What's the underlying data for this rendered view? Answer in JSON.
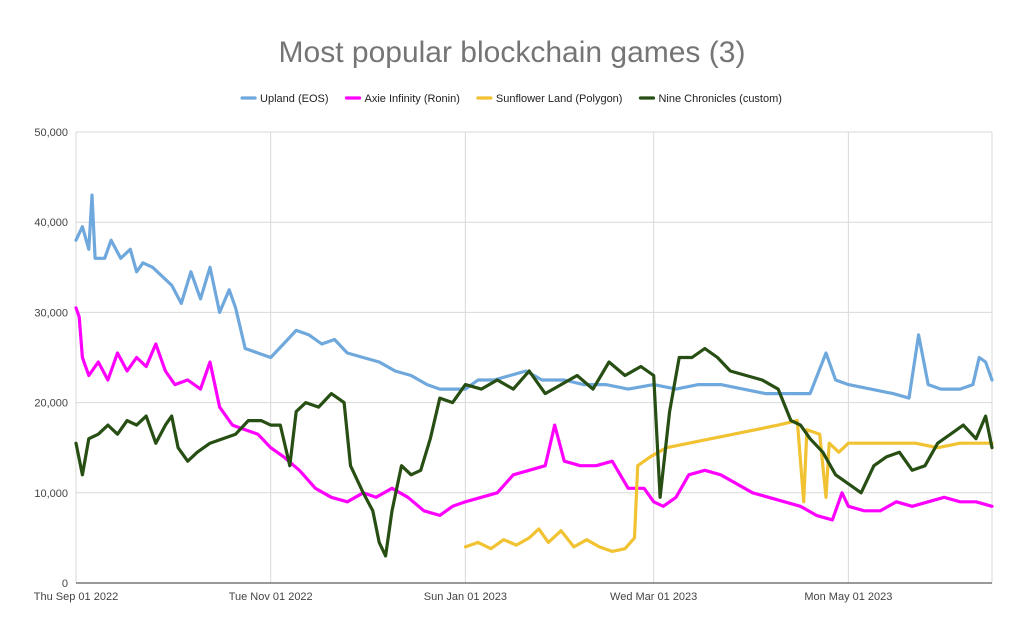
{
  "chart_data": {
    "type": "line",
    "title": "Most popular blockchain games (3)",
    "xlabel": "",
    "ylabel": "",
    "x_start": "2022-09-01",
    "x_end": "2023-06-15",
    "x_tick_labels": [
      {
        "date": "2022-09-01",
        "label": "Thu Sep 01 2022"
      },
      {
        "date": "2022-11-01",
        "label": "Tue Nov 01 2022"
      },
      {
        "date": "2023-01-01",
        "label": "Sun Jan 01 2023"
      },
      {
        "date": "2023-03-01",
        "label": "Wed Mar 01 2023"
      },
      {
        "date": "2023-05-01",
        "label": "Mon May 01 2023"
      }
    ],
    "y_ticks": [
      0,
      10000,
      20000,
      30000,
      40000,
      50000
    ],
    "y_tick_labels": [
      "0",
      "10,000",
      "20,000",
      "30,000",
      "40,000",
      "50,000"
    ],
    "ylim": [
      0,
      50000
    ],
    "grid": "vertical-and-horizontal",
    "legend_position": "top",
    "series": [
      {
        "name": "Upland (EOS)",
        "color": "#6fa8dc",
        "points": [
          [
            "2022-09-01",
            38000
          ],
          [
            "2022-09-03",
            39500
          ],
          [
            "2022-09-05",
            37000
          ],
          [
            "2022-09-06",
            43000
          ],
          [
            "2022-09-07",
            36000
          ],
          [
            "2022-09-10",
            36000
          ],
          [
            "2022-09-12",
            38000
          ],
          [
            "2022-09-15",
            36000
          ],
          [
            "2022-09-18",
            37000
          ],
          [
            "2022-09-20",
            34500
          ],
          [
            "2022-09-22",
            35500
          ],
          [
            "2022-09-25",
            35000
          ],
          [
            "2022-09-28",
            34000
          ],
          [
            "2022-10-01",
            33000
          ],
          [
            "2022-10-04",
            31000
          ],
          [
            "2022-10-07",
            34500
          ],
          [
            "2022-10-10",
            31500
          ],
          [
            "2022-10-13",
            35000
          ],
          [
            "2022-10-16",
            30000
          ],
          [
            "2022-10-19",
            32500
          ],
          [
            "2022-10-21",
            30500
          ],
          [
            "2022-10-24",
            26000
          ],
          [
            "2022-10-28",
            25500
          ],
          [
            "2022-11-01",
            25000
          ],
          [
            "2022-11-05",
            26500
          ],
          [
            "2022-11-09",
            28000
          ],
          [
            "2022-11-13",
            27500
          ],
          [
            "2022-11-17",
            26500
          ],
          [
            "2022-11-21",
            27000
          ],
          [
            "2022-11-25",
            25500
          ],
          [
            "2022-11-30",
            25000
          ],
          [
            "2022-12-05",
            24500
          ],
          [
            "2022-12-10",
            23500
          ],
          [
            "2022-12-15",
            23000
          ],
          [
            "2022-12-20",
            22000
          ],
          [
            "2022-12-24",
            21500
          ],
          [
            "2023-01-01",
            21500
          ],
          [
            "2023-01-05",
            22500
          ],
          [
            "2023-01-10",
            22500
          ],
          [
            "2023-01-15",
            23000
          ],
          [
            "2023-01-20",
            23500
          ],
          [
            "2023-01-25",
            22500
          ],
          [
            "2023-02-01",
            22500
          ],
          [
            "2023-02-07",
            22000
          ],
          [
            "2023-02-14",
            22000
          ],
          [
            "2023-02-21",
            21500
          ],
          [
            "2023-03-01",
            22000
          ],
          [
            "2023-03-08",
            21500
          ],
          [
            "2023-03-15",
            22000
          ],
          [
            "2023-03-22",
            22000
          ],
          [
            "2023-03-29",
            21500
          ],
          [
            "2023-04-05",
            21000
          ],
          [
            "2023-04-12",
            21000
          ],
          [
            "2023-04-19",
            21000
          ],
          [
            "2023-04-24",
            25500
          ],
          [
            "2023-04-27",
            22500
          ],
          [
            "2023-05-01",
            22000
          ],
          [
            "2023-05-08",
            21500
          ],
          [
            "2023-05-15",
            21000
          ],
          [
            "2023-05-20",
            20500
          ],
          [
            "2023-05-23",
            27500
          ],
          [
            "2023-05-26",
            22000
          ],
          [
            "2023-05-30",
            21500
          ],
          [
            "2023-06-05",
            21500
          ],
          [
            "2023-06-09",
            22000
          ],
          [
            "2023-06-11",
            25000
          ],
          [
            "2023-06-13",
            24500
          ],
          [
            "2023-06-15",
            22500
          ]
        ]
      },
      {
        "name": "Axie Infinity (Ronin)",
        "color": "#ff00ff",
        "points": [
          [
            "2022-09-01",
            30500
          ],
          [
            "2022-09-02",
            29500
          ],
          [
            "2022-09-03",
            25000
          ],
          [
            "2022-09-05",
            23000
          ],
          [
            "2022-09-08",
            24500
          ],
          [
            "2022-09-11",
            22500
          ],
          [
            "2022-09-14",
            25500
          ],
          [
            "2022-09-17",
            23500
          ],
          [
            "2022-09-20",
            25000
          ],
          [
            "2022-09-23",
            24000
          ],
          [
            "2022-09-26",
            26500
          ],
          [
            "2022-09-29",
            23500
          ],
          [
            "2022-10-02",
            22000
          ],
          [
            "2022-10-06",
            22500
          ],
          [
            "2022-10-10",
            21500
          ],
          [
            "2022-10-13",
            24500
          ],
          [
            "2022-10-16",
            19500
          ],
          [
            "2022-10-20",
            17500
          ],
          [
            "2022-10-24",
            17000
          ],
          [
            "2022-10-28",
            16500
          ],
          [
            "2022-11-01",
            15000
          ],
          [
            "2022-11-05",
            14000
          ],
          [
            "2022-11-10",
            12500
          ],
          [
            "2022-11-15",
            10500
          ],
          [
            "2022-11-20",
            9500
          ],
          [
            "2022-11-25",
            9000
          ],
          [
            "2022-11-30",
            10000
          ],
          [
            "2022-12-04",
            9500
          ],
          [
            "2022-12-09",
            10500
          ],
          [
            "2022-12-14",
            9500
          ],
          [
            "2022-12-19",
            8000
          ],
          [
            "2022-12-24",
            7500
          ],
          [
            "2022-12-28",
            8500
          ],
          [
            "2023-01-01",
            9000
          ],
          [
            "2023-01-06",
            9500
          ],
          [
            "2023-01-11",
            10000
          ],
          [
            "2023-01-16",
            12000
          ],
          [
            "2023-01-21",
            12500
          ],
          [
            "2023-01-26",
            13000
          ],
          [
            "2023-01-29",
            17500
          ],
          [
            "2023-02-01",
            13500
          ],
          [
            "2023-02-06",
            13000
          ],
          [
            "2023-02-11",
            13000
          ],
          [
            "2023-02-16",
            13500
          ],
          [
            "2023-02-21",
            10500
          ],
          [
            "2023-02-26",
            10500
          ],
          [
            "2023-03-01",
            9000
          ],
          [
            "2023-03-04",
            8500
          ],
          [
            "2023-03-08",
            9500
          ],
          [
            "2023-03-12",
            12000
          ],
          [
            "2023-03-17",
            12500
          ],
          [
            "2023-03-22",
            12000
          ],
          [
            "2023-03-27",
            11000
          ],
          [
            "2023-04-01",
            10000
          ],
          [
            "2023-04-06",
            9500
          ],
          [
            "2023-04-11",
            9000
          ],
          [
            "2023-04-16",
            8500
          ],
          [
            "2023-04-21",
            7500
          ],
          [
            "2023-04-26",
            7000
          ],
          [
            "2023-04-29",
            10000
          ],
          [
            "2023-05-01",
            8500
          ],
          [
            "2023-05-06",
            8000
          ],
          [
            "2023-05-11",
            8000
          ],
          [
            "2023-05-16",
            9000
          ],
          [
            "2023-05-21",
            8500
          ],
          [
            "2023-05-26",
            9000
          ],
          [
            "2023-05-31",
            9500
          ],
          [
            "2023-06-05",
            9000
          ],
          [
            "2023-06-10",
            9000
          ],
          [
            "2023-06-15",
            8500
          ]
        ]
      },
      {
        "name": "Sunflower Land (Polygon)",
        "color": "#f1c232",
        "points": [
          [
            "2023-01-01",
            4000
          ],
          [
            "2023-01-05",
            4500
          ],
          [
            "2023-01-09",
            3800
          ],
          [
            "2023-01-13",
            4800
          ],
          [
            "2023-01-17",
            4200
          ],
          [
            "2023-01-21",
            5000
          ],
          [
            "2023-01-24",
            6000
          ],
          [
            "2023-01-27",
            4500
          ],
          [
            "2023-01-31",
            5800
          ],
          [
            "2023-02-04",
            4000
          ],
          [
            "2023-02-08",
            4800
          ],
          [
            "2023-02-12",
            4000
          ],
          [
            "2023-02-16",
            3500
          ],
          [
            "2023-02-20",
            3800
          ],
          [
            "2023-02-23",
            5000
          ],
          [
            "2023-02-24",
            13000
          ],
          [
            "2023-02-28",
            14000
          ],
          [
            "2023-03-05",
            15000
          ],
          [
            "2023-03-12",
            15500
          ],
          [
            "2023-03-19",
            16000
          ],
          [
            "2023-03-26",
            16500
          ],
          [
            "2023-04-02",
            17000
          ],
          [
            "2023-04-09",
            17500
          ],
          [
            "2023-04-15",
            18000
          ],
          [
            "2023-04-17",
            9000
          ],
          [
            "2023-04-18",
            17000
          ],
          [
            "2023-04-22",
            16500
          ],
          [
            "2023-04-24",
            9500
          ],
          [
            "2023-04-25",
            15500
          ],
          [
            "2023-04-28",
            14500
          ],
          [
            "2023-05-01",
            15500
          ],
          [
            "2023-05-08",
            15500
          ],
          [
            "2023-05-15",
            15500
          ],
          [
            "2023-05-22",
            15500
          ],
          [
            "2023-05-29",
            15000
          ],
          [
            "2023-06-05",
            15500
          ],
          [
            "2023-06-15",
            15500
          ]
        ]
      },
      {
        "name": "Nine Chronicles (custom)",
        "color": "#274e13",
        "points": [
          [
            "2022-09-01",
            15500
          ],
          [
            "2022-09-03",
            12000
          ],
          [
            "2022-09-05",
            16000
          ],
          [
            "2022-09-08",
            16500
          ],
          [
            "2022-09-11",
            17500
          ],
          [
            "2022-09-14",
            16500
          ],
          [
            "2022-09-17",
            18000
          ],
          [
            "2022-09-20",
            17500
          ],
          [
            "2022-09-23",
            18500
          ],
          [
            "2022-09-26",
            15500
          ],
          [
            "2022-09-29",
            17500
          ],
          [
            "2022-10-01",
            18500
          ],
          [
            "2022-10-03",
            15000
          ],
          [
            "2022-10-06",
            13500
          ],
          [
            "2022-10-09",
            14500
          ],
          [
            "2022-10-13",
            15500
          ],
          [
            "2022-10-17",
            16000
          ],
          [
            "2022-10-21",
            16500
          ],
          [
            "2022-10-25",
            18000
          ],
          [
            "2022-10-29",
            18000
          ],
          [
            "2022-11-01",
            17500
          ],
          [
            "2022-11-04",
            17500
          ],
          [
            "2022-11-07",
            13000
          ],
          [
            "2022-11-09",
            19000
          ],
          [
            "2022-11-12",
            20000
          ],
          [
            "2022-11-16",
            19500
          ],
          [
            "2022-11-20",
            21000
          ],
          [
            "2022-11-24",
            20000
          ],
          [
            "2022-11-26",
            13000
          ],
          [
            "2022-11-30",
            10000
          ],
          [
            "2022-12-03",
            8000
          ],
          [
            "2022-12-05",
            4500
          ],
          [
            "2022-12-07",
            3000
          ],
          [
            "2022-12-09",
            8000
          ],
          [
            "2022-12-12",
            13000
          ],
          [
            "2022-12-15",
            12000
          ],
          [
            "2022-12-18",
            12500
          ],
          [
            "2022-12-21",
            16000
          ],
          [
            "2022-12-24",
            20500
          ],
          [
            "2022-12-28",
            20000
          ],
          [
            "2023-01-01",
            22000
          ],
          [
            "2023-01-06",
            21500
          ],
          [
            "2023-01-11",
            22500
          ],
          [
            "2023-01-16",
            21500
          ],
          [
            "2023-01-21",
            23500
          ],
          [
            "2023-01-26",
            21000
          ],
          [
            "2023-01-31",
            22000
          ],
          [
            "2023-02-05",
            23000
          ],
          [
            "2023-02-10",
            21500
          ],
          [
            "2023-02-15",
            24500
          ],
          [
            "2023-02-20",
            23000
          ],
          [
            "2023-02-25",
            24000
          ],
          [
            "2023-03-01",
            23000
          ],
          [
            "2023-03-03",
            9500
          ],
          [
            "2023-03-06",
            19000
          ],
          [
            "2023-03-09",
            25000
          ],
          [
            "2023-03-13",
            25000
          ],
          [
            "2023-03-17",
            26000
          ],
          [
            "2023-03-21",
            25000
          ],
          [
            "2023-03-25",
            23500
          ],
          [
            "2023-03-30",
            23000
          ],
          [
            "2023-04-04",
            22500
          ],
          [
            "2023-04-09",
            21500
          ],
          [
            "2023-04-13",
            18000
          ],
          [
            "2023-04-16",
            17500
          ],
          [
            "2023-04-19",
            16000
          ],
          [
            "2023-04-23",
            14500
          ],
          [
            "2023-04-27",
            12000
          ],
          [
            "2023-05-01",
            11000
          ],
          [
            "2023-05-05",
            10000
          ],
          [
            "2023-05-09",
            13000
          ],
          [
            "2023-05-13",
            14000
          ],
          [
            "2023-05-17",
            14500
          ],
          [
            "2023-05-21",
            12500
          ],
          [
            "2023-05-25",
            13000
          ],
          [
            "2023-05-29",
            15500
          ],
          [
            "2023-06-02",
            16500
          ],
          [
            "2023-06-06",
            17500
          ],
          [
            "2023-06-10",
            16000
          ],
          [
            "2023-06-13",
            18500
          ],
          [
            "2023-06-15",
            15000
          ]
        ]
      }
    ]
  }
}
